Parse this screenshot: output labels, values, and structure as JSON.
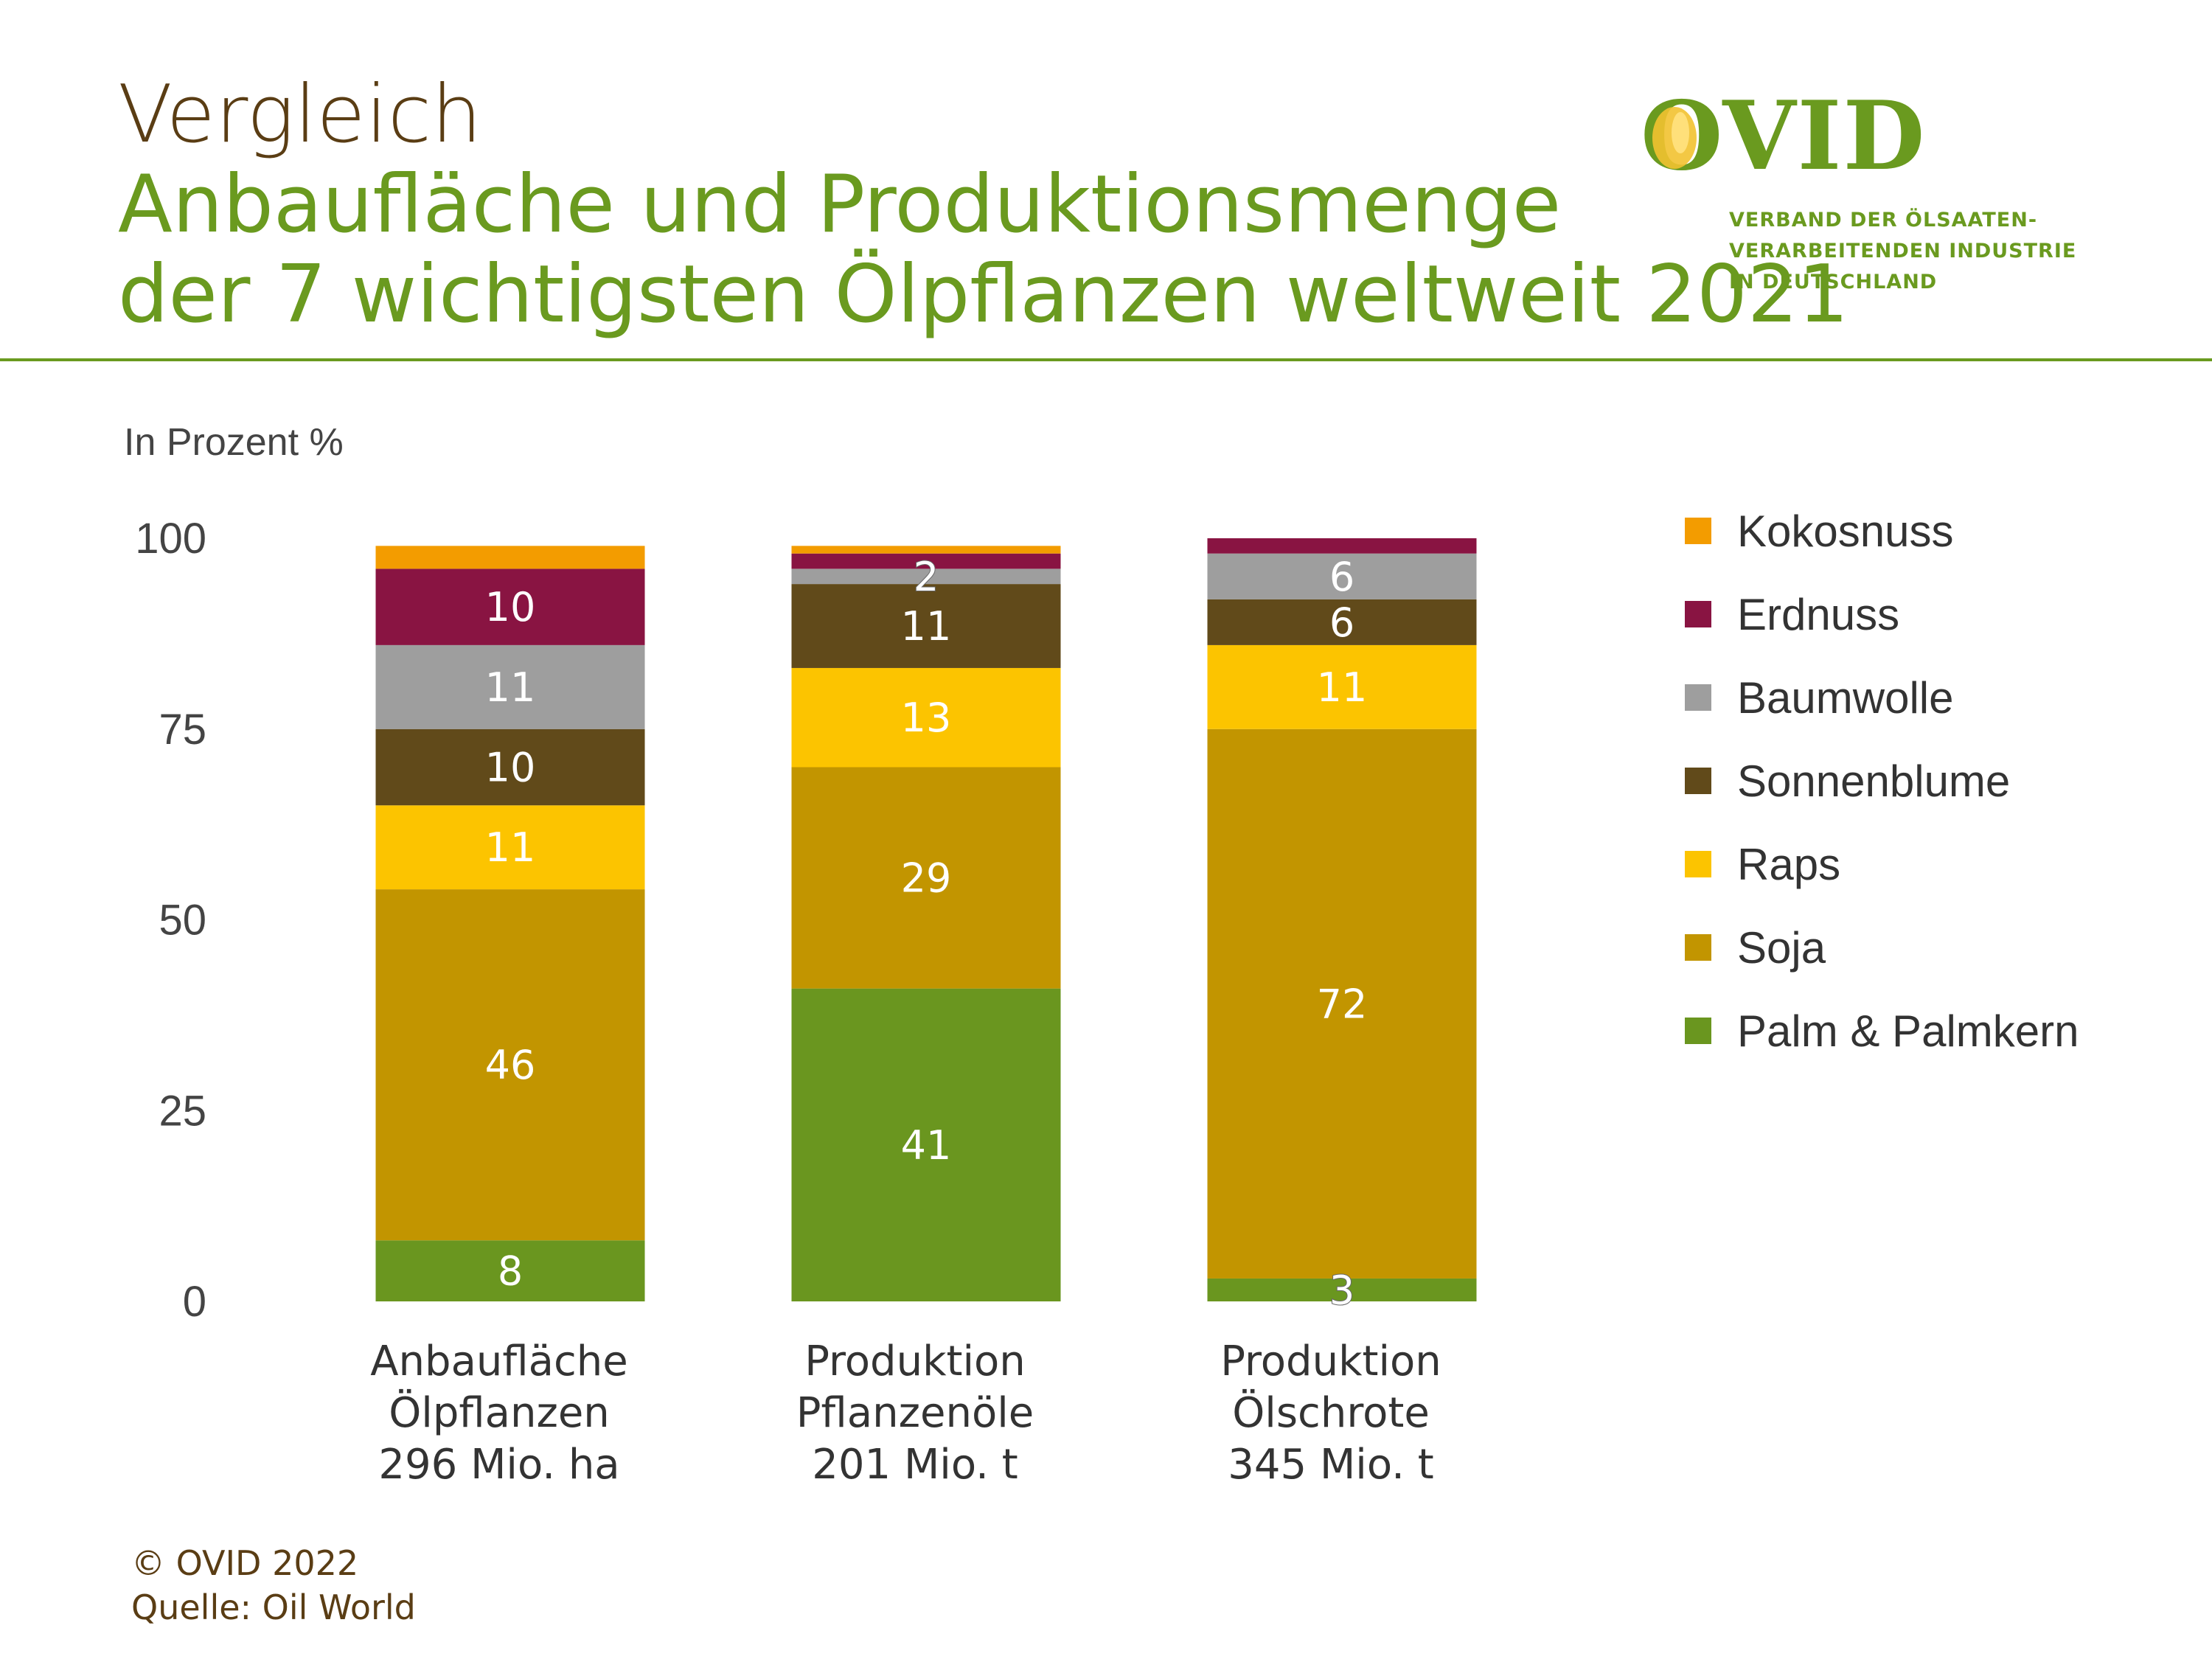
{
  "header": {
    "title": "Vergleich",
    "subtitle_line1": "Anbaufläche und Produktionsmenge",
    "subtitle_line2": "der 7 wichtigsten Ölpflanzen weltweit 2021"
  },
  "logo": {
    "wordmark": "OVID",
    "tagline_line1": "VERBAND DER ÖLSAATEN-",
    "tagline_line2": "VERARBEITENDEN INDUSTRIE",
    "tagline_line3": "IN DEUTSCHLAND"
  },
  "footer": {
    "copyright": "© OVID 2022",
    "source": "Quelle: Oil World"
  },
  "chart_data": {
    "type": "bar",
    "stacked": true,
    "ylabel": "In Prozent %",
    "ylim": [
      0,
      100
    ],
    "yticks": [
      0,
      25,
      50,
      75,
      100
    ],
    "grid": false,
    "legend_position": "right",
    "categories": [
      [
        "Anbaufläche",
        "Ölpflanzen",
        "296 Mio. ha"
      ],
      [
        "Produktion",
        "Pflanzenöle",
        "201 Mio. t"
      ],
      [
        "Produktion",
        "Ölschrote",
        "345 Mio. t"
      ]
    ],
    "series": [
      {
        "name": "Palm & Palmkern",
        "color": "#6a961f",
        "values": [
          8,
          41,
          3
        ],
        "labels": [
          "8",
          "41",
          "3"
        ]
      },
      {
        "name": "Soja",
        "color": "#c29500",
        "values": [
          46,
          29,
          72
        ],
        "labels": [
          "46",
          "29",
          "72"
        ]
      },
      {
        "name": "Raps",
        "color": "#fcc400",
        "values": [
          11,
          13,
          11
        ],
        "labels": [
          "11",
          "13",
          "11"
        ]
      },
      {
        "name": "Sonnenblume",
        "color": "#614a1a",
        "values": [
          10,
          11,
          6
        ],
        "labels": [
          "10",
          "11",
          "6"
        ]
      },
      {
        "name": "Baumwolle",
        "color": "#9e9e9e",
        "values": [
          11,
          2,
          6
        ],
        "labels": [
          "11",
          "2",
          "6"
        ]
      },
      {
        "name": "Erdnuss",
        "color": "#891442",
        "values": [
          10,
          2,
          2
        ],
        "labels": [
          "10",
          "",
          ""
        ]
      },
      {
        "name": "Kokosnuss",
        "color": "#f39c00",
        "values": [
          3,
          1,
          0
        ],
        "labels": [
          "",
          "",
          ""
        ]
      }
    ]
  }
}
